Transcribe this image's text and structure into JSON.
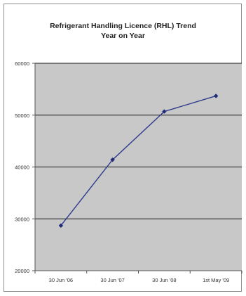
{
  "chart_data": {
    "type": "line",
    "title_lines": [
      "Refrigerant Handling Licence (RHL) Trend",
      "Year on Year"
    ],
    "categories": [
      "30 Jun '06",
      "30 Jun '07",
      "30 Jun '08",
      "1st May '09"
    ],
    "series": [
      {
        "values": [
          28700,
          41400,
          50700,
          53700
        ]
      }
    ],
    "ylim": [
      20000,
      60000
    ],
    "yticks": [
      20000,
      30000,
      40000,
      50000,
      60000
    ],
    "ytick_labels": [
      "20000",
      "30000",
      "40000",
      "50000",
      "60000"
    ],
    "grid": true,
    "legend": "none",
    "colors": {
      "plot_background": "#c8c8c8",
      "line": "#2e3a8c",
      "marker": "#1f2a78",
      "grid": "#1a1a1a",
      "axis": "#555555"
    }
  }
}
